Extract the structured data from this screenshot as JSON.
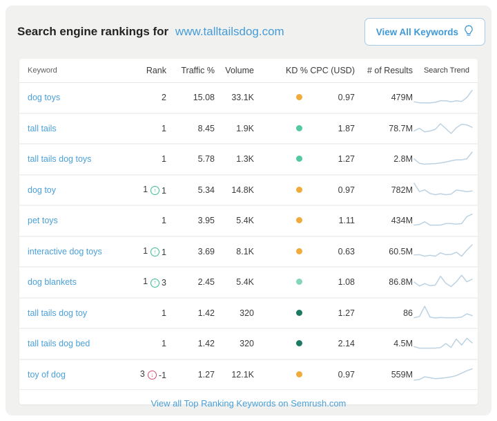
{
  "header": {
    "title": "Search engine rankings for",
    "domain": "www.talltailsdog.com",
    "button_label": "View All Keywords",
    "button_icon": "lightbulb"
  },
  "table": {
    "columns": [
      "Keyword",
      "Rank",
      "Traffic %",
      "Volume",
      "KD %",
      "CPC (USD)",
      "# of Results",
      "Search Trend"
    ],
    "rows": [
      {
        "keyword": "dog toys",
        "rank": "2",
        "change": null,
        "traffic": "15.08",
        "volume": "33.1K",
        "kd_color": "#f0ab3c",
        "cpc": "0.97",
        "results": "479M",
        "trend": [
          0.22,
          0.15,
          0.15,
          0.14,
          0.18,
          0.28,
          0.28,
          0.22,
          0.28,
          0.24,
          0.5,
          0.97
        ]
      },
      {
        "keyword": "tall tails",
        "rank": "1",
        "change": null,
        "traffic": "8.45",
        "volume": "1.9K",
        "kd_color": "#54c8a0",
        "cpc": "1.87",
        "results": "78.7M",
        "trend": [
          0.35,
          0.52,
          0.28,
          0.34,
          0.45,
          0.82,
          0.5,
          0.18,
          0.55,
          0.78,
          0.74,
          0.58
        ]
      },
      {
        "keyword": "tall tails dog toys",
        "rank": "1",
        "change": null,
        "traffic": "5.78",
        "volume": "1.3K",
        "kd_color": "#54c8a0",
        "cpc": "1.27",
        "results": "2.8M",
        "trend": [
          0.5,
          0.22,
          0.16,
          0.18,
          0.2,
          0.24,
          0.3,
          0.38,
          0.44,
          0.44,
          0.52,
          0.95
        ]
      },
      {
        "keyword": "dog toy",
        "rank": "1",
        "change": {
          "dir": "up",
          "value": "1"
        },
        "traffic": "5.34",
        "volume": "14.8K",
        "kd_color": "#f0ab3c",
        "cpc": "0.97",
        "results": "782M",
        "trend": [
          0.95,
          0.4,
          0.52,
          0.28,
          0.2,
          0.26,
          0.2,
          0.24,
          0.5,
          0.46,
          0.4,
          0.44
        ]
      },
      {
        "keyword": "pet toys",
        "rank": "1",
        "change": null,
        "traffic": "3.95",
        "volume": "5.4K",
        "kd_color": "#f0ab3c",
        "cpc": "1.11",
        "results": "434M",
        "trend": [
          0.2,
          0.24,
          0.42,
          0.2,
          0.2,
          0.2,
          0.3,
          0.3,
          0.26,
          0.3,
          0.76,
          0.92
        ]
      },
      {
        "keyword": "interactive dog toys",
        "rank": "1",
        "change": {
          "dir": "up",
          "value": "1"
        },
        "traffic": "3.69",
        "volume": "8.1K",
        "kd_color": "#f0ab3c",
        "cpc": "0.63",
        "results": "60.5M",
        "trend": [
          0.28,
          0.3,
          0.2,
          0.26,
          0.2,
          0.42,
          0.3,
          0.32,
          0.46,
          0.2,
          0.6,
          0.95
        ]
      },
      {
        "keyword": "dog blankets",
        "rank": "1",
        "change": {
          "dir": "up",
          "value": "3"
        },
        "traffic": "2.45",
        "volume": "5.4K",
        "kd_color": "#85d6b6",
        "cpc": "1.08",
        "results": "86.8M",
        "trend": [
          0.5,
          0.24,
          0.4,
          0.26,
          0.3,
          0.88,
          0.42,
          0.2,
          0.52,
          0.95,
          0.52,
          0.68
        ]
      },
      {
        "keyword": "tall tails dog toy",
        "rank": "1",
        "change": null,
        "traffic": "1.42",
        "volume": "320",
        "kd_color": "#1c7a63",
        "cpc": "1.27",
        "results": "86",
        "trend": [
          0.2,
          0.28,
          0.95,
          0.24,
          0.18,
          0.22,
          0.2,
          0.2,
          0.2,
          0.24,
          0.46,
          0.34
        ]
      },
      {
        "keyword": "tall tails dog bed",
        "rank": "1",
        "change": null,
        "traffic": "1.42",
        "volume": "320",
        "kd_color": "#1c7a63",
        "cpc": "2.14",
        "results": "4.5M",
        "trend": [
          0.3,
          0.2,
          0.2,
          0.2,
          0.2,
          0.24,
          0.5,
          0.25,
          0.8,
          0.4,
          0.85,
          0.55
        ]
      },
      {
        "keyword": "toy of dog",
        "rank": "3",
        "change": {
          "dir": "down",
          "value": "-1"
        },
        "traffic": "1.27",
        "volume": "12.1K",
        "kd_color": "#f0ab3c",
        "cpc": "0.97",
        "results": "559M",
        "trend": [
          0.14,
          0.18,
          0.36,
          0.3,
          0.24,
          0.26,
          0.3,
          0.36,
          0.44,
          0.6,
          0.76,
          0.88
        ]
      }
    ]
  },
  "footer": {
    "link": "View all Top Ranking Keywords on Semrush.com"
  },
  "colors": {
    "accent_blue": "#459cd8",
    "kd_orange": "#f0ab3c",
    "kd_green": "#54c8a0",
    "kd_light_green": "#85d6b6",
    "kd_dark_green": "#1c7a63",
    "rank_up": "#35bd98",
    "rank_down": "#d5496b",
    "spark_line": "#bcd2e2",
    "panel_bg": "#f1f1ef"
  }
}
